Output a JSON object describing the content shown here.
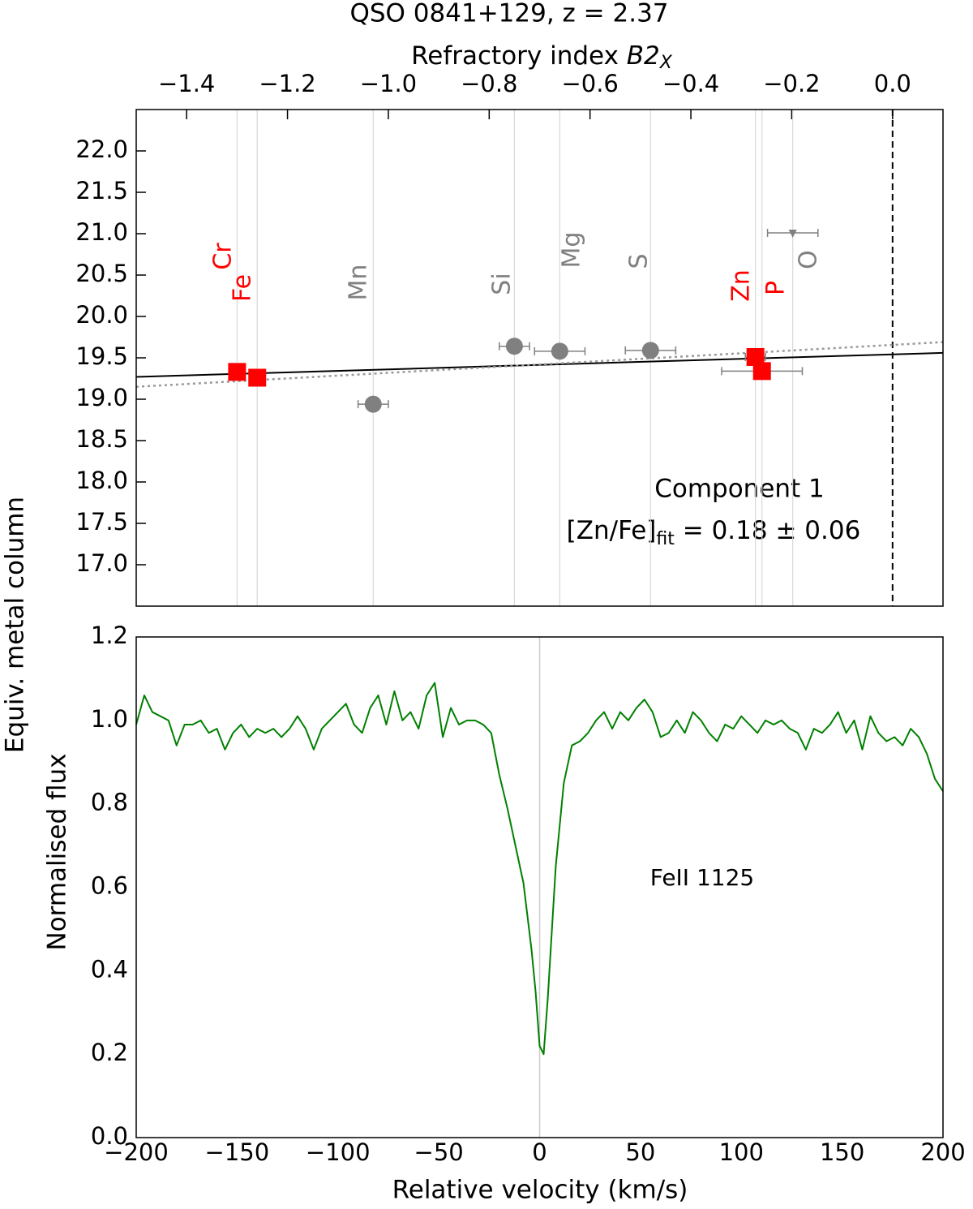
{
  "chart_data": [
    {
      "type": "scatter",
      "title": "QSO 0841+129, z = 2.37",
      "x_label": {
        "main": "Refractory index ",
        "italic": "B2",
        "sub": "X"
      },
      "y_label": "Equiv. metal column",
      "xlim": [
        -1.5,
        0.1
      ],
      "ylim": [
        16.5,
        22.5
      ],
      "xticks": [
        {
          "value": -1.4,
          "label": "−1.4"
        },
        {
          "value": -1.2,
          "label": "−1.2"
        },
        {
          "value": -1.0,
          "label": "−1.0"
        },
        {
          "value": -0.8,
          "label": "−0.8"
        },
        {
          "value": -0.6,
          "label": "−0.6"
        },
        {
          "value": -0.4,
          "label": "−0.4"
        },
        {
          "value": -0.2,
          "label": "−0.2"
        },
        {
          "value": 0.0,
          "label": "0.0"
        }
      ],
      "yticks": [
        {
          "value": 17.0,
          "label": "17.0"
        },
        {
          "value": 17.5,
          "label": "17.5"
        },
        {
          "value": 18.0,
          "label": "18.0"
        },
        {
          "value": 18.5,
          "label": "18.5"
        },
        {
          "value": 19.0,
          "label": "19.0"
        },
        {
          "value": 19.5,
          "label": "19.5"
        },
        {
          "value": 20.0,
          "label": "20.0"
        },
        {
          "value": 20.5,
          "label": "20.5"
        },
        {
          "value": 21.0,
          "label": "21.0"
        },
        {
          "value": 21.5,
          "label": "21.5"
        },
        {
          "value": 22.0,
          "label": "22.0"
        }
      ],
      "points": [
        {
          "name": "Cr",
          "x": -1.3,
          "y": 19.33,
          "xerr": 0.0,
          "color": "#ff0000",
          "marker": "square"
        },
        {
          "name": "Fe",
          "x": -1.26,
          "y": 19.26,
          "xerr": 0.0,
          "color": "#ff0000",
          "marker": "square"
        },
        {
          "name": "Mn",
          "x": -1.03,
          "y": 18.94,
          "xerr": 0.03,
          "color": "#808080",
          "marker": "circle"
        },
        {
          "name": "Si",
          "x": -0.75,
          "y": 19.64,
          "xerr": 0.03,
          "color": "#808080",
          "marker": "circle"
        },
        {
          "name": "Mg",
          "x": -0.66,
          "y": 19.58,
          "xerr": 0.05,
          "color": "#808080",
          "marker": "circle"
        },
        {
          "name": "S",
          "x": -0.48,
          "y": 19.59,
          "xerr": 0.05,
          "color": "#808080",
          "marker": "circle"
        },
        {
          "name": "Zn",
          "x": -0.272,
          "y": 19.51,
          "xerr": 0.02,
          "color": "#ff0000",
          "marker": "square"
        },
        {
          "name": "P",
          "x": -0.259,
          "y": 19.34,
          "xerr": 0.08,
          "color": "#ff0000",
          "marker": "square"
        },
        {
          "name": "O",
          "x": -0.198,
          "y": 21.01,
          "xerr": 0.05,
          "color": "#808080",
          "marker": "upper_limit"
        }
      ],
      "fit": {
        "x": [
          -1.5,
          0.1
        ],
        "y": [
          19.27,
          19.56
        ],
        "color": "#000000"
      },
      "fit_alt": {
        "x": [
          -1.5,
          0.1
        ],
        "y": [
          19.15,
          19.69
        ],
        "color": "#999999"
      },
      "reference_x": 0.0,
      "annotation": {
        "line1": "Component 1",
        "main": "[Zn/Fe]",
        "sub": "fit",
        "rest": " = 0.18 ± 0.06"
      }
    },
    {
      "type": "line",
      "x_label": "Relative velocity (km/s)",
      "y_label": "Normalised flux",
      "xlim": [
        -200,
        200
      ],
      "ylim": [
        0.0,
        1.2
      ],
      "xticks": [
        {
          "value": -200,
          "label": "−200"
        },
        {
          "value": -150,
          "label": "−150"
        },
        {
          "value": -100,
          "label": "−100"
        },
        {
          "value": -50,
          "label": "−50"
        },
        0,
        50,
        100,
        150,
        200
      ],
      "yticks": [
        {
          "value": 0.0,
          "label": "0.0"
        },
        {
          "value": 0.2,
          "label": "0.2"
        },
        {
          "value": 0.4,
          "label": "0.4"
        },
        {
          "value": 0.6,
          "label": "0.6"
        },
        {
          "value": 0.8,
          "label": "0.8"
        },
        {
          "value": 1.0,
          "label": "1.0"
        },
        {
          "value": 1.2,
          "label": "1.2"
        }
      ],
      "reference_x": 0,
      "annotation": "FeII 1125",
      "series": [
        {
          "name": "FeII 1125",
          "color": "#008000",
          "x": [
            -200,
            -196,
            -192,
            -188,
            -184,
            -180,
            -176,
            -172,
            -168,
            -164,
            -160,
            -156,
            -152,
            -148,
            -144,
            -140,
            -136,
            -132,
            -128,
            -124,
            -120,
            -116,
            -112,
            -108,
            -104,
            -100,
            -96,
            -92,
            -88,
            -84,
            -80,
            -76,
            -72,
            -68,
            -64,
            -60,
            -56,
            -52,
            -48,
            -44,
            -40,
            -36,
            -32,
            -28,
            -24,
            -20,
            -16,
            -12,
            -8,
            -4,
            -2,
            0,
            2,
            4,
            8,
            12,
            16,
            20,
            24,
            28,
            32,
            36,
            40,
            44,
            48,
            52,
            56,
            60,
            64,
            68,
            72,
            76,
            80,
            84,
            88,
            92,
            96,
            100,
            104,
            108,
            112,
            116,
            120,
            124,
            128,
            132,
            136,
            140,
            144,
            148,
            152,
            156,
            160,
            164,
            168,
            172,
            176,
            180,
            184,
            188,
            192,
            196,
            200
          ],
          "values": [
            0.99,
            1.06,
            1.02,
            1.01,
            1.0,
            0.94,
            0.99,
            0.99,
            1.0,
            0.97,
            0.98,
            0.93,
            0.97,
            0.99,
            0.96,
            0.98,
            0.97,
            0.98,
            0.96,
            0.98,
            1.01,
            0.98,
            0.93,
            0.98,
            1.0,
            1.02,
            1.04,
            0.99,
            0.97,
            1.03,
            1.06,
            0.99,
            1.07,
            1.0,
            1.02,
            0.98,
            1.06,
            1.09,
            0.96,
            1.03,
            0.99,
            1.0,
            1.0,
            0.99,
            0.97,
            0.87,
            0.79,
            0.7,
            0.61,
            0.45,
            0.35,
            0.22,
            0.2,
            0.33,
            0.65,
            0.85,
            0.94,
            0.95,
            0.97,
            1.0,
            1.02,
            0.98,
            1.02,
            1.0,
            1.03,
            1.05,
            1.02,
            0.96,
            0.97,
            1.0,
            0.97,
            1.02,
            1.0,
            0.97,
            0.95,
            0.99,
            0.98,
            1.01,
            0.99,
            0.97,
            1.0,
            0.99,
            1.0,
            0.98,
            0.97,
            0.93,
            0.98,
            0.97,
            0.99,
            1.02,
            0.97,
            1.0,
            0.93,
            1.01,
            0.97,
            0.95,
            0.96,
            0.94,
            0.98,
            0.96,
            0.92,
            0.86,
            0.83
          ]
        }
      ]
    }
  ]
}
